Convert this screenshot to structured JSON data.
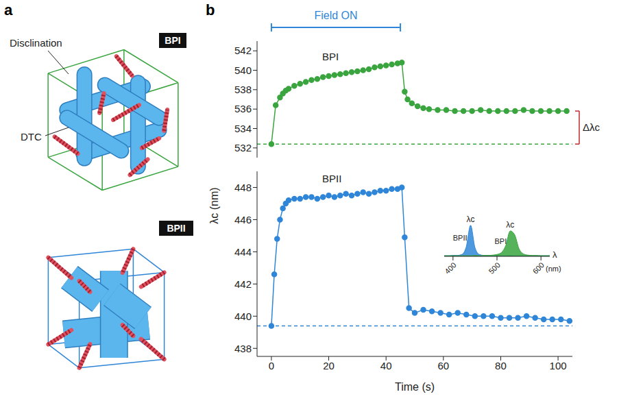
{
  "panel_labels": [
    "a",
    "b"
  ],
  "diagram": {
    "top": {
      "label": "BPI",
      "annotations": [
        "Disclination",
        "DTC"
      ]
    },
    "bottom": {
      "label": "BPII"
    }
  },
  "chart_data": [
    {
      "type": "line",
      "y_label": "λc (nm)",
      "annotations": [
        "Field ON",
        "Δλc"
      ],
      "field_on": [
        0,
        45
      ],
      "baseline": 532.4,
      "delta_bracket": [
        532.4,
        535.8
      ],
      "x": [
        0,
        1.5,
        3,
        4,
        5,
        6,
        8,
        10,
        12,
        14,
        16,
        18,
        20,
        22,
        24,
        26,
        28,
        30,
        32,
        34,
        36,
        38,
        40,
        42,
        44,
        45.5,
        46.5,
        47.5,
        49,
        51,
        53,
        55,
        58,
        61,
        64,
        67,
        70,
        73,
        76,
        79,
        82,
        85,
        88,
        91,
        94,
        97,
        100,
        103
      ],
      "series": [
        {
          "name": "BPI",
          "color": "#3aa53f",
          "marker": "circle",
          "values": [
            532.4,
            536.4,
            537.2,
            537.6,
            537.9,
            538.1,
            538.4,
            538.6,
            538.8,
            539.0,
            539.1,
            539.3,
            539.4,
            539.5,
            539.6,
            539.7,
            539.8,
            539.9,
            540.0,
            540.1,
            540.3,
            540.4,
            540.5,
            540.6,
            540.7,
            540.8,
            537.8,
            537.0,
            536.6,
            536.3,
            536.1,
            536.0,
            535.9,
            535.9,
            535.8,
            535.8,
            535.8,
            535.9,
            535.8,
            535.8,
            535.8,
            535.8,
            535.9,
            535.8,
            535.8,
            535.8,
            535.8,
            535.8
          ]
        }
      ],
      "xlim": [
        -5,
        105
      ],
      "xticks": [
        0,
        20,
        40,
        60,
        80,
        100
      ],
      "ylim": [
        531,
        543
      ],
      "yticks": [
        532,
        534,
        536,
        538,
        540,
        542
      ],
      "tick_labels": "y"
    },
    {
      "type": "line",
      "x_label": "Time (s)",
      "baseline": 439.4,
      "x": [
        0,
        1,
        2,
        3,
        4,
        5,
        6,
        8,
        10,
        12,
        14,
        16,
        18,
        20,
        22,
        24,
        26,
        28,
        30,
        32,
        34,
        36,
        38,
        40,
        42,
        44,
        45.5,
        46.5,
        48,
        50,
        53,
        56,
        59,
        62,
        65,
        68,
        71,
        74,
        77,
        80,
        83,
        86,
        89,
        92,
        95,
        98,
        101,
        104
      ],
      "series": [
        {
          "name": "BPII",
          "color": "#2f86d8",
          "marker": "circle",
          "values": [
            439.4,
            442.6,
            444.8,
            446.0,
            446.7,
            447.0,
            447.2,
            447.3,
            447.3,
            447.4,
            447.4,
            447.3,
            447.4,
            447.5,
            447.4,
            447.5,
            447.6,
            447.5,
            447.6,
            447.7,
            447.6,
            447.7,
            447.8,
            447.8,
            447.9,
            447.9,
            448.0,
            444.9,
            440.5,
            440.2,
            440.4,
            440.3,
            440.2,
            440.1,
            440.2,
            440.1,
            440.0,
            440.0,
            440.0,
            439.9,
            439.9,
            439.9,
            440.0,
            439.9,
            439.8,
            439.8,
            439.8,
            439.7
          ]
        }
      ],
      "xlim": [
        -5,
        105
      ],
      "xticks": [
        0,
        20,
        40,
        60,
        80,
        100
      ],
      "ylim": [
        437.5,
        449
      ],
      "yticks": [
        438,
        440,
        442,
        444,
        446,
        448
      ]
    },
    {
      "type": "area",
      "x_label": "λ",
      "x_unit_label": "(nm)",
      "peak_label": "λc",
      "x": [
        380,
        390,
        400,
        410,
        420,
        430,
        440,
        450,
        460,
        470,
        480,
        490,
        500,
        510,
        520,
        530,
        540,
        550,
        560,
        570,
        580,
        590,
        600,
        610,
        620
      ],
      "series": [
        {
          "name": "BPII",
          "color": "#2f86d8",
          "values": [
            0.02,
            0.02,
            0.03,
            0.03,
            0.06,
            0.3,
            1.0,
            0.28,
            0.06,
            0.03,
            0.03,
            0.02,
            0.03,
            0.02,
            0.02,
            0.03,
            0.02,
            0.02,
            0.02,
            0.03,
            0.02,
            0.02,
            0.02,
            0.02,
            0.02
          ]
        },
        {
          "name": "BPI",
          "color": "#3aa53f",
          "values": [
            0.02,
            0.02,
            0.02,
            0.02,
            0.02,
            0.02,
            0.02,
            0.03,
            0.02,
            0.03,
            0.03,
            0.04,
            0.06,
            0.12,
            0.35,
            0.82,
            0.7,
            0.25,
            0.08,
            0.04,
            0.03,
            0.03,
            0.02,
            0.02,
            0.02
          ]
        }
      ],
      "xlim": [
        380,
        620
      ],
      "xticks": [
        400,
        500,
        600
      ],
      "ylim": [
        0,
        1.15
      ],
      "yticks": [],
      "tick_labels": "x"
    }
  ]
}
